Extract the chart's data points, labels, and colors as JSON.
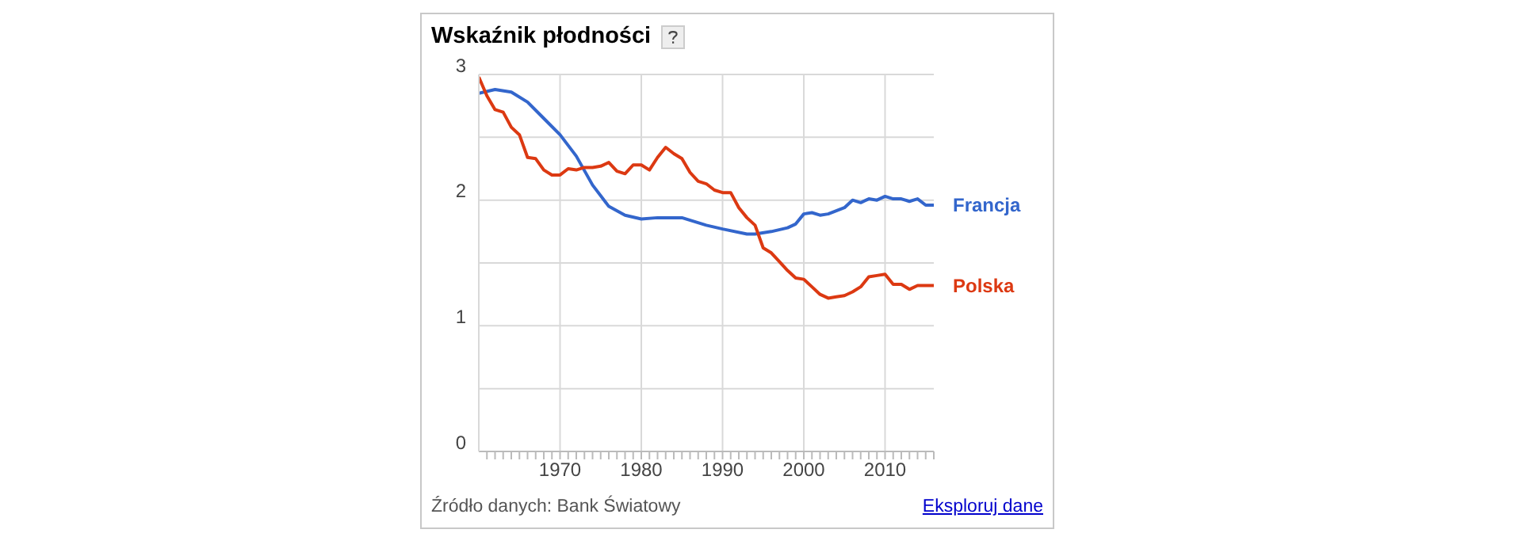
{
  "chart_data": {
    "type": "line",
    "title": "Wskaźnik płodności",
    "xlim": [
      1960,
      2016
    ],
    "xticks": [
      {
        "value": 1961,
        "label": null
      },
      {
        "value": 1962,
        "label": null
      },
      {
        "value": 1963,
        "label": null
      },
      {
        "value": 1964,
        "label": null
      },
      {
        "value": 1965,
        "label": null
      },
      {
        "value": 1966,
        "label": null
      },
      {
        "value": 1967,
        "label": null
      },
      {
        "value": 1968,
        "label": null
      },
      {
        "value": 1969,
        "label": null
      },
      1970,
      {
        "value": 1971,
        "label": null
      },
      {
        "value": 1972,
        "label": null
      },
      {
        "value": 1973,
        "label": null
      },
      {
        "value": 1974,
        "label": null
      },
      {
        "value": 1975,
        "label": null
      },
      {
        "value": 1976,
        "label": null
      },
      {
        "value": 1977,
        "label": null
      },
      {
        "value": 1978,
        "label": null
      },
      {
        "value": 1979,
        "label": null
      },
      1980,
      {
        "value": 1981,
        "label": null
      },
      {
        "value": 1982,
        "label": null
      },
      {
        "value": 1983,
        "label": null
      },
      {
        "value": 1984,
        "label": null
      },
      {
        "value": 1985,
        "label": null
      },
      {
        "value": 1986,
        "label": null
      },
      {
        "value": 1987,
        "label": null
      },
      {
        "value": 1988,
        "label": null
      },
      {
        "value": 1989,
        "label": null
      },
      1990,
      {
        "value": 1991,
        "label": null
      },
      {
        "value": 1992,
        "label": null
      },
      {
        "value": 1993,
        "label": null
      },
      {
        "value": 1994,
        "label": null
      },
      {
        "value": 1995,
        "label": null
      },
      {
        "value": 1996,
        "label": null
      },
      {
        "value": 1997,
        "label": null
      },
      {
        "value": 1998,
        "label": null
      },
      {
        "value": 1999,
        "label": null
      },
      2000,
      {
        "value": 2001,
        "label": null
      },
      {
        "value": 2002,
        "label": null
      },
      {
        "value": 2003,
        "label": null
      },
      {
        "value": 2004,
        "label": null
      },
      {
        "value": 2005,
        "label": null
      },
      {
        "value": 2006,
        "label": null
      },
      {
        "value": 2007,
        "label": null
      },
      {
        "value": 2008,
        "label": null
      },
      {
        "value": 2009,
        "label": null
      },
      2010,
      {
        "value": 2011,
        "label": null
      },
      {
        "value": 2012,
        "label": null
      },
      {
        "value": 2013,
        "label": null
      },
      {
        "value": 2014,
        "label": null
      },
      {
        "value": 2015,
        "label": null
      },
      {
        "value": 2016,
        "label": null
      }
    ],
    "ylim": [
      0,
      3
    ],
    "yticks": [
      0,
      {
        "value": 0.5,
        "label": null
      },
      1,
      {
        "value": 1.5,
        "label": null
      },
      2,
      {
        "value": 2.5,
        "label": null
      },
      3
    ],
    "grid": true,
    "series": [
      {
        "name": "Francja",
        "color": "#3366cc",
        "x": [
          1960,
          1962,
          1964,
          1966,
          1968,
          1970,
          1972,
          1974,
          1976,
          1978,
          1980,
          1982,
          1985,
          1988,
          1990,
          1993,
          1994,
          1996,
          1998,
          1999,
          2000,
          2001,
          2002,
          2003,
          2005,
          2006,
          2007,
          2008,
          2009,
          2010,
          2011,
          2012,
          2013,
          2014,
          2015,
          2016
        ],
        "values": [
          2.85,
          2.88,
          2.86,
          2.78,
          2.65,
          2.52,
          2.35,
          2.12,
          1.95,
          1.88,
          1.85,
          1.86,
          1.86,
          1.8,
          1.77,
          1.73,
          1.73,
          1.75,
          1.78,
          1.81,
          1.89,
          1.9,
          1.88,
          1.89,
          1.94,
          2.0,
          1.98,
          2.01,
          2.0,
          2.03,
          2.01,
          2.01,
          1.99,
          2.01,
          1.96,
          1.96
        ]
      },
      {
        "name": "Polska",
        "color": "#dc3912",
        "x": [
          1960,
          1961,
          1962,
          1963,
          1964,
          1965,
          1966,
          1967,
          1968,
          1969,
          1970,
          1971,
          1972,
          1973,
          1974,
          1975,
          1976,
          1977,
          1978,
          1979,
          1980,
          1981,
          1982,
          1983,
          1984,
          1985,
          1986,
          1987,
          1988,
          1989,
          1990,
          1991,
          1992,
          1993,
          1994,
          1995,
          1996,
          1997,
          1998,
          1999,
          2000,
          2001,
          2002,
          2003,
          2004,
          2005,
          2006,
          2007,
          2008,
          2009,
          2010,
          2011,
          2012,
          2013,
          2014,
          2015,
          2016
        ],
        "values": [
          2.98,
          2.83,
          2.72,
          2.7,
          2.58,
          2.52,
          2.34,
          2.33,
          2.24,
          2.2,
          2.2,
          2.25,
          2.24,
          2.26,
          2.26,
          2.27,
          2.3,
          2.23,
          2.21,
          2.28,
          2.28,
          2.24,
          2.34,
          2.42,
          2.37,
          2.33,
          2.22,
          2.15,
          2.13,
          2.08,
          2.06,
          2.06,
          1.94,
          1.86,
          1.8,
          1.62,
          1.58,
          1.51,
          1.44,
          1.38,
          1.37,
          1.31,
          1.25,
          1.22,
          1.23,
          1.24,
          1.27,
          1.31,
          1.39,
          1.4,
          1.41,
          1.33,
          1.33,
          1.29,
          1.32,
          1.32,
          1.32
        ]
      }
    ],
    "annotations": [
      "Źródło danych: Bank Światowy",
      "Eksploruj dane"
    ]
  }
}
